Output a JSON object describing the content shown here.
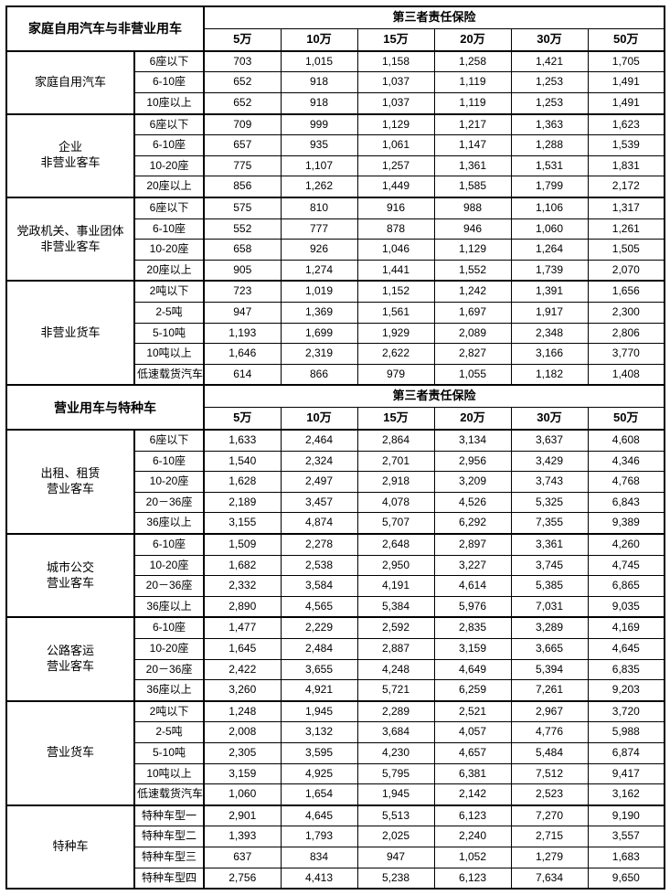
{
  "section1": {
    "title": "家庭自用汽车与非营业用车",
    "coverage_title": "第三者责任保险",
    "tiers": [
      "5万",
      "10万",
      "15万",
      "20万",
      "30万",
      "50万"
    ],
    "groups": [
      {
        "name": "家庭自用汽车",
        "rows": [
          {
            "sub": "6座以下",
            "vals": [
              "703",
              "1,015",
              "1,158",
              "1,258",
              "1,421",
              "1,705"
            ]
          },
          {
            "sub": "6-10座",
            "vals": [
              "652",
              "918",
              "1,037",
              "1,119",
              "1,253",
              "1,491"
            ]
          },
          {
            "sub": "10座以上",
            "vals": [
              "652",
              "918",
              "1,037",
              "1,119",
              "1,253",
              "1,491"
            ]
          }
        ]
      },
      {
        "name": "企业\n非营业客车",
        "rows": [
          {
            "sub": "6座以下",
            "vals": [
              "709",
              "999",
              "1,129",
              "1,217",
              "1,363",
              "1,623"
            ]
          },
          {
            "sub": "6-10座",
            "vals": [
              "657",
              "935",
              "1,061",
              "1,147",
              "1,288",
              "1,539"
            ]
          },
          {
            "sub": "10-20座",
            "vals": [
              "775",
              "1,107",
              "1,257",
              "1,361",
              "1,531",
              "1,831"
            ]
          },
          {
            "sub": "20座以上",
            "vals": [
              "856",
              "1,262",
              "1,449",
              "1,585",
              "1,799",
              "2,172"
            ]
          }
        ]
      },
      {
        "name": "党政机关、事业团体\n非营业客车",
        "rows": [
          {
            "sub": "6座以下",
            "vals": [
              "575",
              "810",
              "916",
              "988",
              "1,106",
              "1,317"
            ]
          },
          {
            "sub": "6-10座",
            "vals": [
              "552",
              "777",
              "878",
              "946",
              "1,060",
              "1,261"
            ]
          },
          {
            "sub": "10-20座",
            "vals": [
              "658",
              "926",
              "1,046",
              "1,129",
              "1,264",
              "1,505"
            ]
          },
          {
            "sub": "20座以上",
            "vals": [
              "905",
              "1,274",
              "1,441",
              "1,552",
              "1,739",
              "2,070"
            ]
          }
        ]
      },
      {
        "name": "非营业货车",
        "rows": [
          {
            "sub": "2吨以下",
            "vals": [
              "723",
              "1,019",
              "1,152",
              "1,242",
              "1,391",
              "1,656"
            ]
          },
          {
            "sub": "2-5吨",
            "vals": [
              "947",
              "1,369",
              "1,561",
              "1,697",
              "1,917",
              "2,300"
            ]
          },
          {
            "sub": "5-10吨",
            "vals": [
              "1,193",
              "1,699",
              "1,929",
              "2,089",
              "2,348",
              "2,806"
            ]
          },
          {
            "sub": "10吨以上",
            "vals": [
              "1,646",
              "2,319",
              "2,622",
              "2,827",
              "3,166",
              "3,770"
            ]
          },
          {
            "sub": "低速载货汽车",
            "vals": [
              "614",
              "866",
              "979",
              "1,055",
              "1,182",
              "1,408"
            ]
          }
        ]
      }
    ]
  },
  "section2": {
    "title": "营业用车与特种车",
    "coverage_title": "第三者责任保险",
    "tiers": [
      "5万",
      "10万",
      "15万",
      "20万",
      "30万",
      "50万"
    ],
    "groups": [
      {
        "name": "出租、租赁\n营业客车",
        "rows": [
          {
            "sub": "6座以下",
            "vals": [
              "1,633",
              "2,464",
              "2,864",
              "3,134",
              "3,637",
              "4,608"
            ]
          },
          {
            "sub": "6-10座",
            "vals": [
              "1,540",
              "2,324",
              "2,701",
              "2,956",
              "3,429",
              "4,346"
            ]
          },
          {
            "sub": "10-20座",
            "vals": [
              "1,628",
              "2,497",
              "2,918",
              "3,209",
              "3,743",
              "4,768"
            ]
          },
          {
            "sub": "20－36座",
            "vals": [
              "2,189",
              "3,457",
              "4,078",
              "4,526",
              "5,325",
              "6,843"
            ]
          },
          {
            "sub": "36座以上",
            "vals": [
              "3,155",
              "4,874",
              "5,707",
              "6,292",
              "7,355",
              "9,389"
            ]
          }
        ]
      },
      {
        "name": "城市公交\n营业客车",
        "rows": [
          {
            "sub": "6-10座",
            "vals": [
              "1,509",
              "2,278",
              "2,648",
              "2,897",
              "3,361",
              "4,260"
            ]
          },
          {
            "sub": "10-20座",
            "vals": [
              "1,682",
              "2,538",
              "2,950",
              "3,227",
              "3,745",
              "4,745"
            ]
          },
          {
            "sub": "20－36座",
            "vals": [
              "2,332",
              "3,584",
              "4,191",
              "4,614",
              "5,385",
              "6,865"
            ]
          },
          {
            "sub": "36座以上",
            "vals": [
              "2,890",
              "4,565",
              "5,384",
              "5,976",
              "7,031",
              "9,035"
            ]
          }
        ]
      },
      {
        "name": "公路客运\n营业客车",
        "rows": [
          {
            "sub": "6-10座",
            "vals": [
              "1,477",
              "2,229",
              "2,592",
              "2,835",
              "3,289",
              "4,169"
            ]
          },
          {
            "sub": "10-20座",
            "vals": [
              "1,645",
              "2,484",
              "2,887",
              "3,159",
              "3,665",
              "4,645"
            ]
          },
          {
            "sub": "20－36座",
            "vals": [
              "2,422",
              "3,655",
              "4,248",
              "4,649",
              "5,394",
              "6,835"
            ]
          },
          {
            "sub": "36座以上",
            "vals": [
              "3,260",
              "4,921",
              "5,721",
              "6,259",
              "7,261",
              "9,203"
            ]
          }
        ]
      },
      {
        "name": "营业货车",
        "rows": [
          {
            "sub": "2吨以下",
            "vals": [
              "1,248",
              "1,945",
              "2,289",
              "2,521",
              "2,967",
              "3,720"
            ]
          },
          {
            "sub": "2-5吨",
            "vals": [
              "2,008",
              "3,132",
              "3,684",
              "4,057",
              "4,776",
              "5,988"
            ]
          },
          {
            "sub": "5-10吨",
            "vals": [
              "2,305",
              "3,595",
              "4,230",
              "4,657",
              "5,484",
              "6,874"
            ]
          },
          {
            "sub": "10吨以上",
            "vals": [
              "3,159",
              "4,925",
              "5,795",
              "6,381",
              "7,512",
              "9,417"
            ]
          },
          {
            "sub": "低速载货汽车",
            "vals": [
              "1,060",
              "1,654",
              "1,945",
              "2,142",
              "2,523",
              "3,162"
            ]
          }
        ]
      },
      {
        "name": "特种车",
        "rows": [
          {
            "sub": "特种车型一",
            "vals": [
              "2,901",
              "4,645",
              "5,513",
              "6,123",
              "7,270",
              "9,190"
            ]
          },
          {
            "sub": "特种车型二",
            "vals": [
              "1,393",
              "1,793",
              "2,025",
              "2,240",
              "2,715",
              "3,557"
            ]
          },
          {
            "sub": "特种车型三",
            "vals": [
              "637",
              "834",
              "947",
              "1,052",
              "1,279",
              "1,683"
            ]
          },
          {
            "sub": "特种车型四",
            "vals": [
              "2,756",
              "4,413",
              "5,238",
              "6,123",
              "7,634",
              "9,650"
            ]
          }
        ]
      }
    ]
  }
}
